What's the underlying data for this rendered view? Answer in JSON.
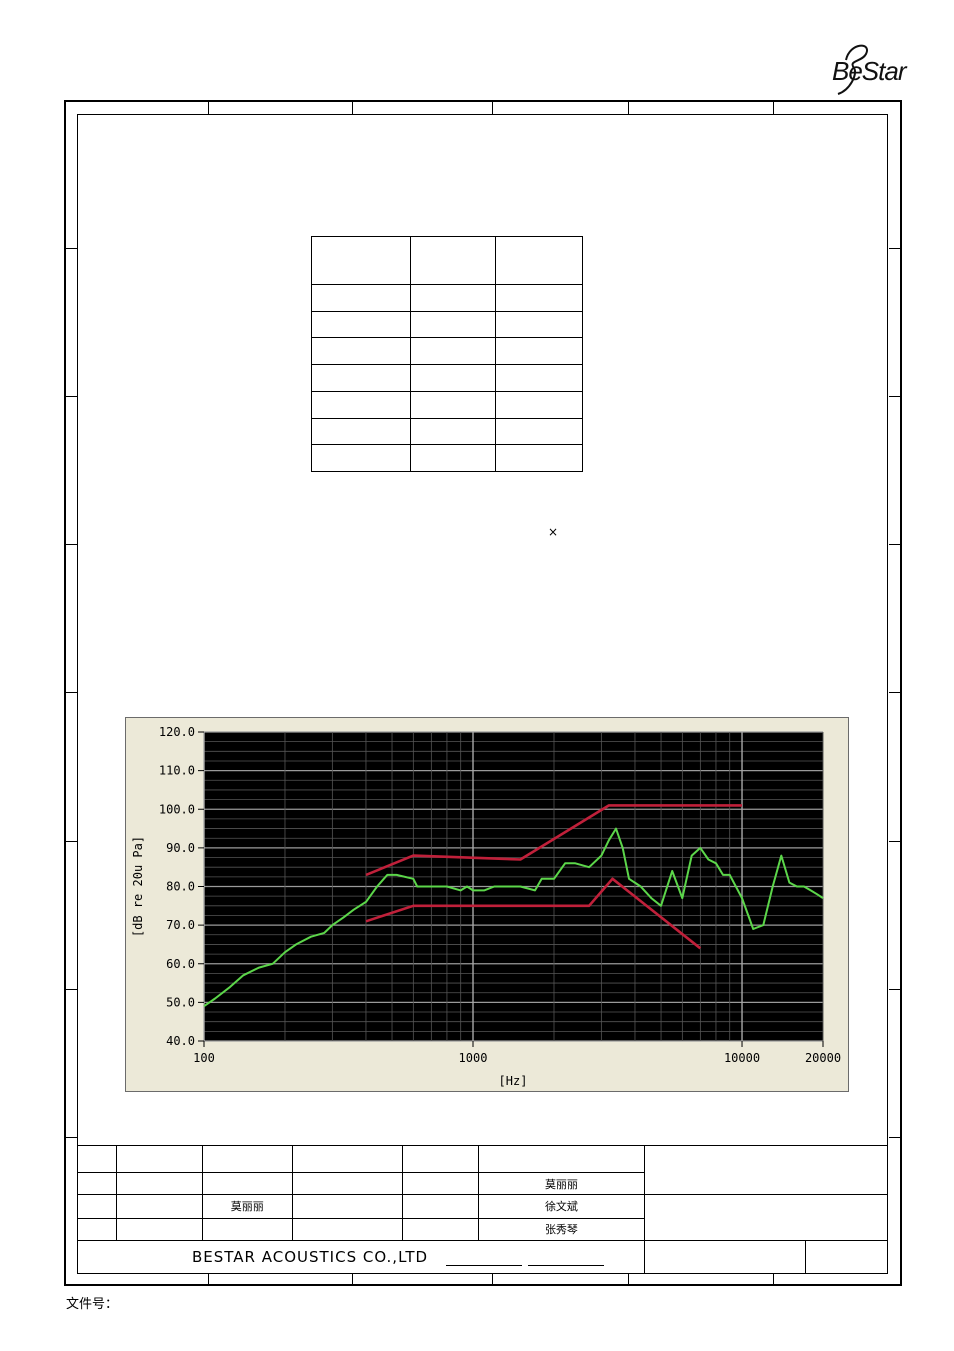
{
  "brand": {
    "logo_text": "BeStar"
  },
  "multiply_mark": "×",
  "chart_data": {
    "type": "line",
    "title": "",
    "xlabel": "[Hz]",
    "ylabel": "[dB re 20u Pa]",
    "xscale": "log",
    "xlim": [
      100,
      20000
    ],
    "ylim": [
      40,
      120
    ],
    "x_ticks": [
      100,
      1000,
      10000,
      20000
    ],
    "x_tick_labels": [
      "100",
      "1000",
      "10000",
      "20000"
    ],
    "y_ticks": [
      40,
      50,
      60,
      70,
      80,
      90,
      100,
      110,
      120
    ],
    "y_tick_labels": [
      "40.0",
      "50.0",
      "60.0",
      "70.0",
      "80.0",
      "90.0",
      "100.0",
      "110.0",
      "120.0"
    ],
    "grid": true,
    "colors": {
      "plot_bg": "#000000",
      "panel_bg": "#ece9d8",
      "response": "#5cd64a",
      "limits": "#c0203a",
      "grid": "#7a7a7a"
    },
    "series": [
      {
        "role": "response",
        "x": [
          100,
          110,
          125,
          140,
          160,
          180,
          200,
          220,
          250,
          280,
          300,
          330,
          360,
          400,
          440,
          480,
          520,
          600,
          620,
          700,
          800,
          900,
          950,
          1000,
          1100,
          1200,
          1300,
          1500,
          1700,
          1800,
          2000,
          2200,
          2400,
          2700,
          3000,
          3200,
          3400,
          3600,
          3800,
          4200,
          4600,
          5000,
          5500,
          6000,
          6500,
          7000,
          7500,
          8000,
          8500,
          9000,
          10000,
          11000,
          12000,
          13000,
          14000,
          15000,
          16000,
          17000,
          18000,
          19000,
          20000
        ],
        "y": [
          49,
          51,
          54,
          57,
          59,
          60,
          63,
          65,
          67,
          68,
          70,
          72,
          74,
          76,
          80,
          83,
          83,
          82,
          80,
          80,
          80,
          79,
          80,
          79,
          79,
          80,
          80,
          80,
          79,
          82,
          82,
          86,
          86,
          85,
          88,
          92,
          95,
          90,
          82,
          80,
          77,
          75,
          84,
          77,
          88,
          90,
          87,
          86,
          83,
          83,
          77,
          69,
          70,
          80,
          88,
          81,
          80,
          80,
          79,
          78,
          77
        ]
      },
      {
        "role": "upper-limit",
        "x": [
          400,
          600,
          1500,
          3200,
          10000
        ],
        "y": [
          83,
          88,
          87,
          101,
          101
        ]
      },
      {
        "role": "lower-limit",
        "x": [
          400,
          600,
          2700,
          3300,
          7000
        ],
        "y": [
          71,
          75,
          75,
          82,
          64
        ]
      }
    ]
  },
  "title_block": {
    "row2_name": "莫丽丽",
    "row3_name_left": "莫丽丽",
    "row3_name_right": "徐文斌",
    "row4_name": "张秀琴",
    "company": "BESTAR  ACOUSTICS  CO.,LTD"
  },
  "footer": {
    "file_no_label": "文件号："
  }
}
